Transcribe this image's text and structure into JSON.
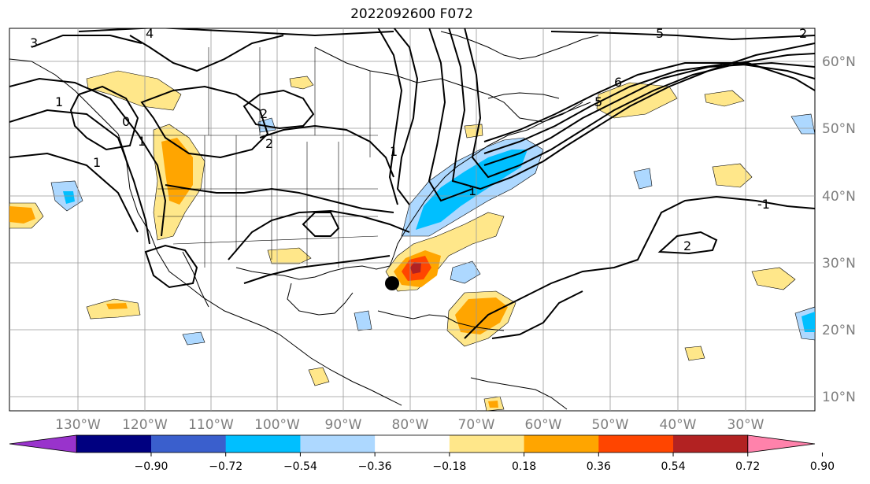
{
  "title": "2022092600 F072",
  "map": {
    "lon_labels": [
      "130°W",
      "120°W",
      "110°W",
      "100°W",
      "90°W",
      "80°W",
      "70°W",
      "60°W",
      "50°W",
      "40°W",
      "30°W"
    ],
    "lat_labels": [
      "60°N",
      "50°N",
      "40°N",
      "30°N",
      "20°N",
      "10°N"
    ],
    "contour_labels": [
      "3",
      "4",
      "5",
      "6",
      "5",
      "2",
      "2",
      "2",
      "1",
      "1",
      "1",
      "0",
      "-1",
      "1",
      "1",
      "2"
    ],
    "marker": "storm-center-dot"
  },
  "colorbar": {
    "ticks": [
      "−0.90",
      "−0.72",
      "−0.54",
      "−0.36",
      "−0.18",
      "0.18",
      "0.36",
      "0.54",
      "0.72",
      "0.90"
    ],
    "colors": [
      "#9933cc",
      "#000080",
      "#3a5fcd",
      "#00bfff",
      "#add8ff",
      "#ffffff",
      "#ffe78a",
      "#ffa500",
      "#ff4500",
      "#b22222",
      "#ff82ab"
    ]
  }
}
